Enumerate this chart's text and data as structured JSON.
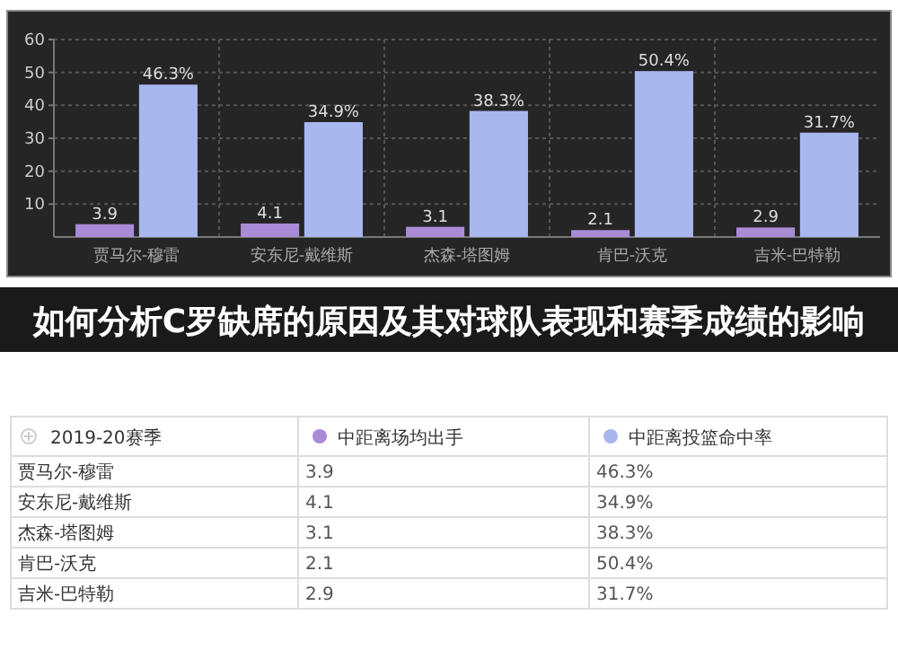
{
  "chart_data": {
    "type": "bar",
    "title": "如何分析C罗缺席的原因及其对球队表现和赛季成绩的影响",
    "legend_title": "2019-20赛季",
    "categories": [
      "贾马尔-穆雷",
      "安东尼-戴维斯",
      "杰森-塔图姆",
      "肯巴-沃克",
      "吉米-巴特勒"
    ],
    "series": [
      {
        "name": "中距离场均出手",
        "color": "#a98bd6",
        "values": [
          3.9,
          4.1,
          3.1,
          2.1,
          2.9
        ],
        "value_labels": [
          "3.9",
          "4.1",
          "3.1",
          "2.1",
          "2.9"
        ]
      },
      {
        "name": "中距离投篮命中率",
        "color": "#a9b7ef",
        "values": [
          46.3,
          34.9,
          38.3,
          50.4,
          31.7
        ],
        "value_labels": [
          "46.3%",
          "34.9%",
          "38.3%",
          "50.4%",
          "31.7%"
        ]
      }
    ],
    "ylim": [
      0,
      60
    ],
    "yticks": [
      10,
      20,
      30,
      40,
      50,
      60
    ],
    "grid": true,
    "legend": "bottom",
    "data_labels": true
  }
}
